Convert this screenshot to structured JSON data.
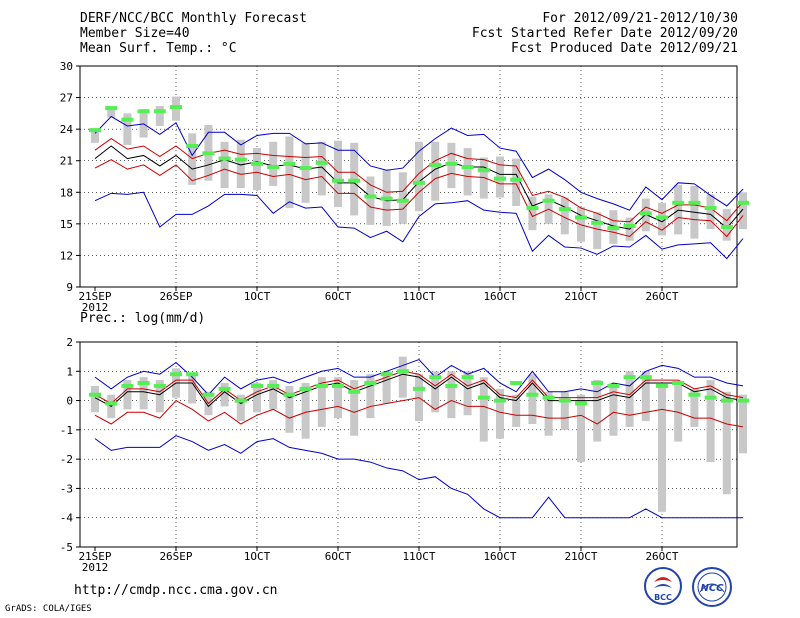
{
  "header": {
    "title": "DERF/NCC/BCC Monthly Forecast",
    "member_size": "Member Size=40",
    "variable": "Mean Surf. Temp.: °C",
    "period": "For 2012/09/21-2012/10/30",
    "started": "Fcst Started Refer Date 2012/09/20",
    "produced": "Fcst Produced Date 2012/09/21"
  },
  "footer": {
    "url": "http://cmdp.ncc.cma.gov.cn",
    "grads": "GrADS: COLA/IGES",
    "logo_left_text": "BCC",
    "logo_right_text": "NCC"
  },
  "colors": {
    "mean_line": "#000000",
    "spread_inner": "#cc0000",
    "envelope": "#0000cc",
    "box": "#c8c8c8",
    "marker": "#55ee55",
    "grid": "#000000"
  },
  "chart_data": [
    {
      "type": "line",
      "title": "Mean Surf. Temp.: °C",
      "x_tick_labels": [
        "21SEP",
        "26SEP",
        "1OCT",
        "6OCT",
        "11OCT",
        "16OCT",
        "21OCT",
        "26OCT"
      ],
      "x_year_label": "2012",
      "x_tick_days": [
        0,
        5,
        10,
        15,
        20,
        25,
        30,
        35
      ],
      "ylim": [
        9,
        30
      ],
      "y_ticks": [
        9,
        12,
        15,
        18,
        21,
        24,
        27,
        30
      ],
      "series": [
        {
          "name": "ensemble mean",
          "values": [
            21.2,
            22.4,
            21.2,
            21.5,
            20.5,
            21.5,
            20.2,
            20.6,
            21.1,
            20.6,
            20.9,
            20.5,
            20.6,
            20.2,
            20.4,
            18.9,
            18.9,
            17.6,
            17.2,
            17.3,
            19.0,
            20.2,
            20.8,
            20.4,
            20.4,
            19.7,
            19.7,
            16.7,
            17.3,
            16.6,
            15.8,
            15.3,
            14.8,
            14.5,
            15.9,
            15.2,
            16.3,
            16.1,
            15.9,
            14.6,
            16.4
          ]
        },
        {
          "name": "upper spread",
          "values": [
            22.0,
            23.1,
            22.1,
            22.4,
            21.4,
            22.4,
            21.2,
            21.7,
            22.0,
            21.6,
            21.7,
            21.5,
            21.4,
            21.3,
            21.4,
            19.9,
            19.9,
            18.7,
            18.0,
            18.1,
            19.8,
            21.0,
            21.7,
            21.2,
            21.1,
            20.6,
            20.5,
            17.7,
            18.1,
            17.5,
            16.5,
            16.0,
            15.3,
            15.2,
            16.6,
            16.0,
            16.8,
            16.8,
            16.5,
            15.3,
            17.1
          ]
        },
        {
          "name": "lower spread",
          "values": [
            20.3,
            21.1,
            20.2,
            20.6,
            19.6,
            20.6,
            19.1,
            19.6,
            20.2,
            19.7,
            19.9,
            19.5,
            19.7,
            19.2,
            19.5,
            17.9,
            17.9,
            16.6,
            16.3,
            16.4,
            18.0,
            19.3,
            19.8,
            19.5,
            19.4,
            18.8,
            18.8,
            15.7,
            16.4,
            15.6,
            14.9,
            14.5,
            14.2,
            13.8,
            15.2,
            14.4,
            15.6,
            15.4,
            15.3,
            13.8,
            15.8
          ]
        },
        {
          "name": "maximum",
          "values": [
            23.6,
            25.2,
            24.3,
            24.5,
            23.5,
            24.6,
            21.5,
            23.7,
            23.7,
            22.5,
            23.4,
            23.6,
            23.6,
            22.6,
            22.7,
            22.0,
            22.0,
            20.5,
            20.1,
            20.3,
            21.9,
            23.1,
            24.1,
            23.4,
            23.5,
            22.2,
            21.9,
            19.4,
            20.2,
            19.2,
            18.0,
            17.4,
            16.9,
            16.3,
            18.5,
            17.3,
            18.9,
            18.8,
            17.7,
            16.7,
            18.3
          ]
        },
        {
          "name": "minimum",
          "values": [
            17.2,
            17.9,
            17.8,
            18.0,
            14.7,
            15.9,
            15.9,
            16.7,
            17.8,
            17.8,
            17.7,
            16.0,
            17.1,
            16.5,
            16.6,
            14.7,
            14.6,
            13.7,
            14.3,
            13.3,
            15.7,
            16.9,
            17.0,
            17.2,
            16.3,
            16.1,
            16.0,
            12.4,
            13.9,
            12.8,
            12.7,
            12.1,
            12.9,
            12.8,
            13.9,
            12.6,
            13.0,
            13.1,
            13.2,
            11.7,
            13.6
          ]
        },
        {
          "name": "green markers",
          "values": [
            23.9,
            26.0,
            24.9,
            25.7,
            25.7,
            26.1,
            22.4,
            21.7,
            21.2,
            21.1,
            20.7,
            20.4,
            20.7,
            20.3,
            20.8,
            19.1,
            19.1,
            17.6,
            17.4,
            17.2,
            18.9,
            20.6,
            20.7,
            20.4,
            20.1,
            19.3,
            19.2,
            16.5,
            17.2,
            16.4,
            15.6,
            15.1,
            14.6,
            14.8,
            16.0,
            15.6,
            17.0,
            17.0,
            16.5,
            14.7,
            17.0
          ]
        }
      ],
      "boxes": [
        {
          "day": 0,
          "lo": 22.7,
          "hi": 24.1
        },
        {
          "day": 1,
          "lo": 25.1,
          "hi": 26.2
        },
        {
          "day": 2,
          "lo": 22.5,
          "hi": 25.5
        },
        {
          "day": 3,
          "lo": 23.2,
          "hi": 25.9
        },
        {
          "day": 4,
          "lo": 24.3,
          "hi": 26.2
        },
        {
          "day": 5,
          "lo": 24.8,
          "hi": 27.1
        },
        {
          "day": 6,
          "lo": 18.7,
          "hi": 23.6
        },
        {
          "day": 7,
          "lo": 19.1,
          "hi": 24.4
        },
        {
          "day": 8,
          "lo": 18.4,
          "hi": 22.8
        },
        {
          "day": 9,
          "lo": 18.4,
          "hi": 23.0
        },
        {
          "day": 10,
          "lo": 18.2,
          "hi": 22.2
        },
        {
          "day": 11,
          "lo": 18.6,
          "hi": 22.8
        },
        {
          "day": 12,
          "lo": 16.5,
          "hi": 23.3
        },
        {
          "day": 13,
          "lo": 17.0,
          "hi": 22.7
        },
        {
          "day": 14,
          "lo": 17.7,
          "hi": 22.8
        },
        {
          "day": 15,
          "lo": 16.6,
          "hi": 22.9
        },
        {
          "day": 16,
          "lo": 15.8,
          "hi": 22.7
        },
        {
          "day": 17,
          "lo": 14.9,
          "hi": 19.5
        },
        {
          "day": 18,
          "lo": 14.8,
          "hi": 20.1
        },
        {
          "day": 19,
          "lo": 15.0,
          "hi": 19.9
        },
        {
          "day": 20,
          "lo": 16.2,
          "hi": 22.8
        },
        {
          "day": 21,
          "lo": 17.2,
          "hi": 22.8
        },
        {
          "day": 22,
          "lo": 18.4,
          "hi": 22.7
        },
        {
          "day": 23,
          "lo": 17.7,
          "hi": 22.2
        },
        {
          "day": 24,
          "lo": 17.4,
          "hi": 21.3
        },
        {
          "day": 25,
          "lo": 17.5,
          "hi": 21.4
        },
        {
          "day": 26,
          "lo": 16.7,
          "hi": 21.2
        },
        {
          "day": 27,
          "lo": 14.4,
          "hi": 17.6
        },
        {
          "day": 28,
          "lo": 15.0,
          "hi": 17.8
        },
        {
          "day": 29,
          "lo": 14.0,
          "hi": 17.5
        },
        {
          "day": 30,
          "lo": 13.3,
          "hi": 16.6
        },
        {
          "day": 31,
          "lo": 12.6,
          "hi": 16.1
        },
        {
          "day": 32,
          "lo": 13.1,
          "hi": 16.3
        },
        {
          "day": 33,
          "lo": 13.4,
          "hi": 15.6
        },
        {
          "day": 34,
          "lo": 14.3,
          "hi": 17.4
        },
        {
          "day": 35,
          "lo": 13.9,
          "hi": 17.0
        },
        {
          "day": 36,
          "lo": 14.0,
          "hi": 18.7
        },
        {
          "day": 37,
          "lo": 13.6,
          "hi": 18.6
        },
        {
          "day": 38,
          "lo": 14.5,
          "hi": 17.8
        },
        {
          "day": 39,
          "lo": 13.4,
          "hi": 16.4
        },
        {
          "day": 40,
          "lo": 14.5,
          "hi": 18.0
        }
      ]
    },
    {
      "type": "line",
      "title": "Prec.: log(mm/d)",
      "x_tick_labels": [
        "21SEP",
        "26SEP",
        "1OCT",
        "6OCT",
        "11OCT",
        "16OCT",
        "21OCT",
        "26OCT"
      ],
      "x_year_label": "2012",
      "x_tick_days": [
        0,
        5,
        10,
        15,
        20,
        25,
        30,
        35
      ],
      "ylim": [
        -5,
        2
      ],
      "y_ticks": [
        -5,
        -4,
        -3,
        -2,
        -1,
        0,
        1,
        2
      ],
      "series": [
        {
          "name": "ensemble mean",
          "values": [
            0.1,
            -0.2,
            0.3,
            0.3,
            0.2,
            0.6,
            0.6,
            -0.2,
            0.3,
            -0.1,
            0.2,
            0.4,
            0.1,
            0.3,
            0.5,
            0.6,
            0.3,
            0.5,
            0.7,
            0.9,
            0.8,
            0.4,
            0.8,
            0.4,
            0.6,
            0.1,
            0.0,
            0.6,
            0.0,
            0.0,
            0.0,
            0.0,
            0.2,
            0.1,
            0.6,
            0.6,
            0.6,
            0.3,
            0.4,
            0.1,
            0.0
          ]
        },
        {
          "name": "upper spread",
          "values": [
            0.2,
            -0.1,
            0.4,
            0.4,
            0.3,
            0.7,
            0.7,
            -0.1,
            0.4,
            0.0,
            0.3,
            0.5,
            0.2,
            0.4,
            0.6,
            0.7,
            0.4,
            0.6,
            0.8,
            1.0,
            0.9,
            0.5,
            0.9,
            0.5,
            0.7,
            0.2,
            0.1,
            0.7,
            0.1,
            0.1,
            0.1,
            0.1,
            0.3,
            0.2,
            0.7,
            0.7,
            0.7,
            0.4,
            0.5,
            0.2,
            0.1
          ]
        },
        {
          "name": "lower spread",
          "values": [
            -0.5,
            -0.8,
            -0.4,
            -0.4,
            -0.6,
            0.0,
            -0.3,
            -0.7,
            -0.4,
            -0.8,
            -0.5,
            -0.3,
            -0.6,
            -0.4,
            -0.3,
            -0.2,
            -0.4,
            -0.2,
            -0.1,
            0.0,
            0.1,
            -0.3,
            0.0,
            -0.2,
            -0.2,
            -0.4,
            -0.5,
            -0.5,
            -0.6,
            -0.6,
            -0.5,
            -0.8,
            -0.4,
            -0.5,
            -0.4,
            -0.3,
            -0.4,
            -0.6,
            -0.6,
            -0.8,
            -0.9
          ]
        },
        {
          "name": "maximum",
          "values": [
            0.8,
            0.4,
            0.8,
            1.0,
            0.9,
            1.3,
            0.8,
            0.2,
            0.8,
            0.4,
            0.7,
            0.8,
            0.6,
            0.8,
            1.0,
            1.1,
            0.8,
            0.8,
            1.0,
            1.2,
            1.4,
            0.8,
            1.2,
            0.9,
            1.1,
            0.6,
            0.3,
            1.0,
            0.3,
            0.3,
            0.4,
            0.3,
            0.6,
            0.5,
            1.0,
            1.2,
            1.1,
            0.8,
            0.8,
            0.6,
            0.5
          ]
        },
        {
          "name": "minimum",
          "values": [
            -1.3,
            -1.7,
            -1.6,
            -1.6,
            -1.6,
            -1.2,
            -1.4,
            -1.7,
            -1.5,
            -1.8,
            -1.4,
            -1.3,
            -1.6,
            -1.7,
            -1.8,
            -2.0,
            -2.0,
            -2.1,
            -2.3,
            -2.4,
            -2.7,
            -2.6,
            -3.0,
            -3.2,
            -3.7,
            -4.0,
            -4.0,
            -4.0,
            -3.3,
            -4.0,
            -4.0,
            -4.0,
            -4.0,
            -4.0,
            -3.7,
            -4.0,
            -4.0,
            -4.0,
            -4.0,
            -4.0,
            -4.0
          ]
        },
        {
          "name": "green markers",
          "values": [
            0.2,
            -0.1,
            0.5,
            0.6,
            0.5,
            0.9,
            0.9,
            0.2,
            0.4,
            0.0,
            0.5,
            0.5,
            0.2,
            0.4,
            0.5,
            0.5,
            0.3,
            0.6,
            0.9,
            1.0,
            0.4,
            0.8,
            0.5,
            0.8,
            0.1,
            0.0,
            0.6,
            0.2,
            0.1,
            0.0,
            -0.1,
            0.6,
            0.5,
            0.8,
            0.8,
            0.5,
            0.6,
            0.2,
            0.1,
            0.0,
            0.0
          ]
        }
      ],
      "boxes": [
        {
          "day": 0,
          "lo": -0.4,
          "hi": 0.5
        },
        {
          "day": 1,
          "lo": -0.6,
          "hi": 0.2
        },
        {
          "day": 2,
          "lo": -0.3,
          "hi": 0.7
        },
        {
          "day": 3,
          "lo": -0.3,
          "hi": 0.8
        },
        {
          "day": 4,
          "lo": -0.4,
          "hi": 0.7
        },
        {
          "day": 5,
          "lo": 0.1,
          "hi": 1.1
        },
        {
          "day": 6,
          "lo": -0.1,
          "hi": 0.9
        },
        {
          "day": 7,
          "lo": -0.5,
          "hi": 0.3
        },
        {
          "day": 8,
          "lo": -0.2,
          "hi": 0.6
        },
        {
          "day": 9,
          "lo": -0.7,
          "hi": 0.2
        },
        {
          "day": 10,
          "lo": -0.4,
          "hi": 0.6
        },
        {
          "day": 11,
          "lo": -0.3,
          "hi": 0.7
        },
        {
          "day": 12,
          "lo": -1.1,
          "hi": 0.5
        },
        {
          "day": 13,
          "lo": -1.3,
          "hi": 0.6
        },
        {
          "day": 14,
          "lo": -0.9,
          "hi": 0.8
        },
        {
          "day": 15,
          "lo": -0.6,
          "hi": 0.8
        },
        {
          "day": 16,
          "lo": -1.2,
          "hi": 0.7
        },
        {
          "day": 17,
          "lo": -0.6,
          "hi": 0.9
        },
        {
          "day": 18,
          "lo": -0.1,
          "hi": 1.0
        },
        {
          "day": 19,
          "lo": 0.1,
          "hi": 1.5
        },
        {
          "day": 20,
          "lo": -0.7,
          "hi": 0.9
        },
        {
          "day": 21,
          "lo": -0.4,
          "hi": 1.0
        },
        {
          "day": 22,
          "lo": -0.6,
          "hi": 1.0
        },
        {
          "day": 23,
          "lo": -0.5,
          "hi": 1.0
        },
        {
          "day": 24,
          "lo": -1.4,
          "hi": 0.8
        },
        {
          "day": 25,
          "lo": -1.3,
          "hi": 0.4
        },
        {
          "day": 26,
          "lo": -0.9,
          "hi": 0.2
        },
        {
          "day": 27,
          "lo": -0.8,
          "hi": 0.9
        },
        {
          "day": 28,
          "lo": -1.2,
          "hi": 0.3
        },
        {
          "day": 29,
          "lo": -1.0,
          "hi": 0.3
        },
        {
          "day": 30,
          "lo": -2.1,
          "hi": 0.2
        },
        {
          "day": 31,
          "lo": -1.4,
          "hi": 0.7
        },
        {
          "day": 32,
          "lo": -1.2,
          "hi": 0.6
        },
        {
          "day": 33,
          "lo": -0.9,
          "hi": 1.0
        },
        {
          "day": 34,
          "lo": -0.7,
          "hi": 1.0
        },
        {
          "day": 35,
          "lo": -3.8,
          "hi": 0.5
        },
        {
          "day": 36,
          "lo": -1.4,
          "hi": 0.6
        },
        {
          "day": 37,
          "lo": -0.9,
          "hi": 0.4
        },
        {
          "day": 38,
          "lo": -2.1,
          "hi": 0.7
        },
        {
          "day": 39,
          "lo": -3.2,
          "hi": 0.3
        },
        {
          "day": 40,
          "lo": -1.8,
          "hi": 0.2
        }
      ]
    }
  ]
}
